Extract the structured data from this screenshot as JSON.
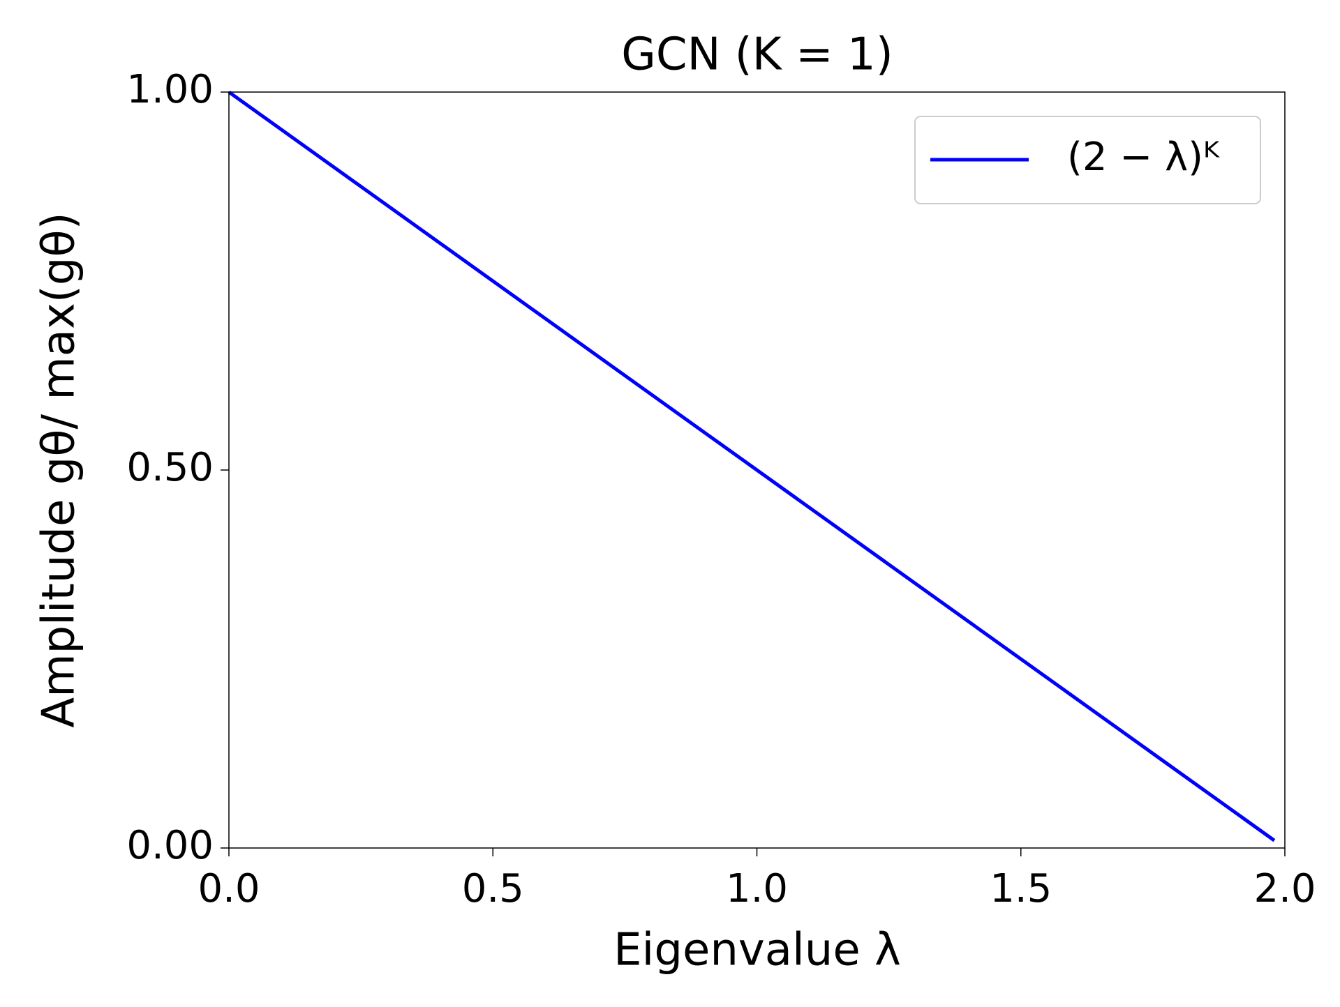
{
  "chart_data": {
    "type": "line",
    "title": "GCN (K = 1)",
    "x_label": "Eigenvalue λ",
    "y_label": "Amplitude gθ/ max(gθ)",
    "x": [
      0,
      1.98
    ],
    "series": [
      {
        "name": "(2 − λ)ᴷ",
        "color": "#0000ff",
        "values": [
          1.0,
          0.01
        ]
      }
    ],
    "xlim": [
      0,
      2
    ],
    "ylim": [
      0,
      1
    ],
    "xticks": [
      {
        "value": 0,
        "label": "0.0"
      },
      {
        "value": 0.5,
        "label": "0.5"
      },
      {
        "value": 1,
        "label": "1.0"
      },
      {
        "value": 1.5,
        "label": "1.5"
      },
      {
        "value": 2,
        "label": "2.0"
      }
    ],
    "yticks": [
      {
        "value": 0,
        "label": "0.00"
      },
      {
        "value": 0.5,
        "label": "0.50"
      },
      {
        "value": 1,
        "label": "1.00"
      }
    ],
    "grid": false,
    "legend": "upper right"
  }
}
